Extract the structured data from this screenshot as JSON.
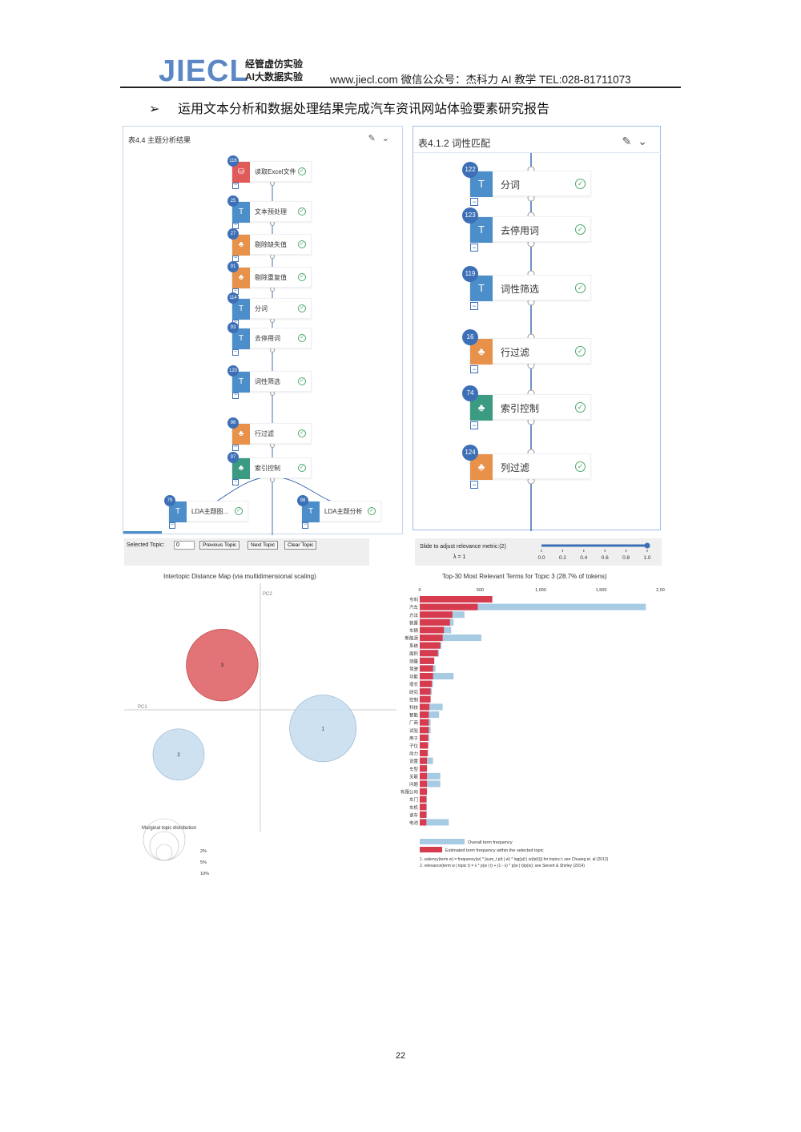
{
  "header": {
    "logo": "JIECL",
    "logo_sub_1": "经管虚仿实验",
    "logo_sub_2": "AI大数据实验",
    "contact": "www.jiecl.com 微信公众号：杰科力 AI 教学    TEL:028-81711073"
  },
  "bullet": {
    "arrow": "➢",
    "text": "运用文本分析和数据处理结果完成汽车资讯网站体验要素研究报告"
  },
  "left_panel": {
    "title": "表4.4 主题分析结果",
    "nodes": [
      {
        "id": "116",
        "label": "读取Excel文件",
        "color": "#e05a5a",
        "icon": "database-icon"
      },
      {
        "id": "25",
        "label": "文本预处理",
        "color": "#4c8ec9",
        "icon": "text-icon"
      },
      {
        "id": "27",
        "label": "剔除缺失值",
        "color": "#e8914a",
        "icon": "tree-icon"
      },
      {
        "id": "91",
        "label": "剔除重复值",
        "color": "#e8914a",
        "icon": "tree-icon"
      },
      {
        "id": "114",
        "label": "分词",
        "color": "#4c8ec9",
        "icon": "text-icon"
      },
      {
        "id": "93",
        "label": "去停用词",
        "color": "#4c8ec9",
        "icon": "text-icon"
      },
      {
        "id": "120",
        "label": "词性筛选",
        "color": "#4c8ec9",
        "icon": "text-icon"
      },
      {
        "id": "96",
        "label": "行过滤",
        "color": "#e8914a",
        "icon": "tree-icon"
      },
      {
        "id": "97",
        "label": "索引控制",
        "color": "#3b9a82",
        "icon": "tree-icon"
      },
      {
        "id": "79",
        "label": "LDA主题图...",
        "color": "#4c8ec9",
        "icon": "text-icon"
      },
      {
        "id": "98",
        "label": "LDA主题分析",
        "color": "#4c8ec9",
        "icon": "text-icon"
      }
    ]
  },
  "right_panel": {
    "title": "表4.1.2 词性匹配",
    "nodes": [
      {
        "id": "122",
        "label": "分词",
        "color": "#4c8ec9",
        "icon": "text-icon"
      },
      {
        "id": "123",
        "label": "去停用词",
        "color": "#4c8ec9",
        "icon": "text-icon"
      },
      {
        "id": "119",
        "label": "词性筛选",
        "color": "#4c8ec9",
        "icon": "text-icon"
      },
      {
        "id": "16",
        "label": "行过滤",
        "color": "#e8914a",
        "icon": "tree-icon"
      },
      {
        "id": "74",
        "label": "索引控制",
        "color": "#3b9a82",
        "icon": "tree-icon"
      },
      {
        "id": "124",
        "label": "列过滤",
        "color": "#e8914a",
        "icon": "tree-icon"
      }
    ]
  },
  "controls": {
    "selected_topic_label": "Selected Topic:",
    "selected_topic_value": "0",
    "prev": "Previous Topic",
    "next": "Next Topic",
    "clear": "Clear Topic",
    "slider_label": "Slide to adjust relevance metric:(2)",
    "lambda_label": "λ = 1",
    "slider_ticks": [
      "0.0",
      "0.2",
      "0.4",
      "0.6",
      "0.8",
      "1.0"
    ],
    "slider_value": 1.0
  },
  "chart_data": [
    {
      "type": "scatter",
      "title": "Intertopic Distance Map (via multidimensional scaling)",
      "xlabel": "PC1",
      "ylabel": "PC2",
      "topics": [
        {
          "name": "3",
          "x": -0.28,
          "y": 0.36,
          "size": 0.28,
          "selected": true
        },
        {
          "name": "1",
          "x": 0.46,
          "y": -0.15,
          "size": 0.26,
          "selected": false
        },
        {
          "name": "2",
          "x": -0.6,
          "y": -0.36,
          "size": 0.2,
          "selected": false
        }
      ],
      "legend_title": "Marginal topic distribution",
      "legend_levels": [
        "2%",
        "5%",
        "10%"
      ]
    },
    {
      "type": "bar",
      "title": "Top-30 Most Relevant Terms for Topic 3 (28.7% of tokens)",
      "xlim": [
        0,
        2000
      ],
      "xticks": [
        "0",
        "500",
        "1,000",
        "1,500",
        "2,000"
      ],
      "series_names": [
        "Overall term frequency",
        "Estimated term frequency within the selected topic"
      ],
      "categories": [
        "专利",
        "汽车",
        "方法",
        "装置",
        "车辆",
        "新能源",
        "系统",
        "面积",
        "测量",
        "驾驶",
        "功能",
        "增长",
        "研究",
        "控制",
        "科技",
        "智能",
        "厂商",
        "试验",
        "用于",
        "子位",
        "动力",
        "设置",
        "车型",
        "关联",
        "问题",
        "有限公司",
        "车门",
        "车机",
        "读车",
        "电池"
      ],
      "overall": [
        600,
        1870,
        370,
        280,
        260,
        510,
        180,
        160,
        120,
        130,
        280,
        110,
        100,
        90,
        190,
        160,
        90,
        90,
        80,
        70,
        70,
        110,
        60,
        170,
        170,
        60,
        60,
        60,
        60,
        240
      ],
      "estimated": [
        600,
        480,
        270,
        250,
        200,
        190,
        170,
        150,
        120,
        110,
        110,
        100,
        90,
        90,
        80,
        75,
        75,
        75,
        70,
        70,
        65,
        60,
        60,
        60,
        60,
        60,
        55,
        55,
        55,
        55
      ],
      "footnotes": [
        "1. saliency(term w) = frequency(w) * [sum_t p(t | w) * log(p(t | w)/p(t))] for topics t; see Chuang et. al (2012)",
        "2. relevance(term w | topic t) = λ * p(w | t) + (1 - λ) * p(w | t)/p(w); see Sievert & Shirley (2014)"
      ]
    }
  ],
  "page_number": "22"
}
